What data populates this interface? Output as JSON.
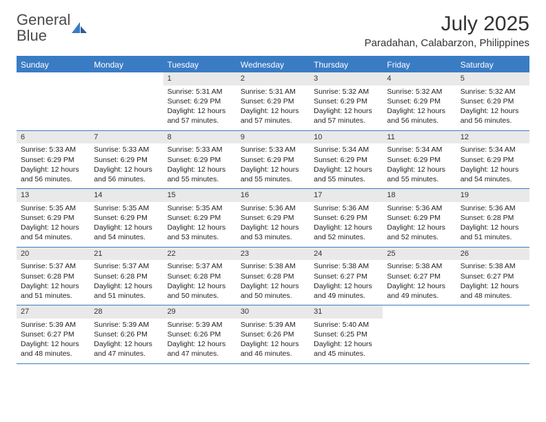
{
  "logo": {
    "text1": "General",
    "text2": "Blue"
  },
  "header": {
    "month_title": "July 2025",
    "location": "Paradahan, Calabarzon, Philippines"
  },
  "colors": {
    "accent": "#3a7cc4",
    "header_text": "#ffffff",
    "daynum_bg": "#e9e9e9",
    "body_text": "#222222",
    "background": "#ffffff"
  },
  "calendar": {
    "day_names": [
      "Sunday",
      "Monday",
      "Tuesday",
      "Wednesday",
      "Thursday",
      "Friday",
      "Saturday"
    ],
    "typography": {
      "day_header_fontsize": 12,
      "cell_fontsize": 10.5,
      "daynum_fontsize": 11
    },
    "weeks": [
      [
        {
          "blank": true
        },
        {
          "blank": true
        },
        {
          "num": "1",
          "sunrise": "Sunrise: 5:31 AM",
          "sunset": "Sunset: 6:29 PM",
          "day1": "Daylight: 12 hours",
          "day2": "and 57 minutes."
        },
        {
          "num": "2",
          "sunrise": "Sunrise: 5:31 AM",
          "sunset": "Sunset: 6:29 PM",
          "day1": "Daylight: 12 hours",
          "day2": "and 57 minutes."
        },
        {
          "num": "3",
          "sunrise": "Sunrise: 5:32 AM",
          "sunset": "Sunset: 6:29 PM",
          "day1": "Daylight: 12 hours",
          "day2": "and 57 minutes."
        },
        {
          "num": "4",
          "sunrise": "Sunrise: 5:32 AM",
          "sunset": "Sunset: 6:29 PM",
          "day1": "Daylight: 12 hours",
          "day2": "and 56 minutes."
        },
        {
          "num": "5",
          "sunrise": "Sunrise: 5:32 AM",
          "sunset": "Sunset: 6:29 PM",
          "day1": "Daylight: 12 hours",
          "day2": "and 56 minutes."
        }
      ],
      [
        {
          "num": "6",
          "sunrise": "Sunrise: 5:33 AM",
          "sunset": "Sunset: 6:29 PM",
          "day1": "Daylight: 12 hours",
          "day2": "and 56 minutes."
        },
        {
          "num": "7",
          "sunrise": "Sunrise: 5:33 AM",
          "sunset": "Sunset: 6:29 PM",
          "day1": "Daylight: 12 hours",
          "day2": "and 56 minutes."
        },
        {
          "num": "8",
          "sunrise": "Sunrise: 5:33 AM",
          "sunset": "Sunset: 6:29 PM",
          "day1": "Daylight: 12 hours",
          "day2": "and 55 minutes."
        },
        {
          "num": "9",
          "sunrise": "Sunrise: 5:33 AM",
          "sunset": "Sunset: 6:29 PM",
          "day1": "Daylight: 12 hours",
          "day2": "and 55 minutes."
        },
        {
          "num": "10",
          "sunrise": "Sunrise: 5:34 AM",
          "sunset": "Sunset: 6:29 PM",
          "day1": "Daylight: 12 hours",
          "day2": "and 55 minutes."
        },
        {
          "num": "11",
          "sunrise": "Sunrise: 5:34 AM",
          "sunset": "Sunset: 6:29 PM",
          "day1": "Daylight: 12 hours",
          "day2": "and 55 minutes."
        },
        {
          "num": "12",
          "sunrise": "Sunrise: 5:34 AM",
          "sunset": "Sunset: 6:29 PM",
          "day1": "Daylight: 12 hours",
          "day2": "and 54 minutes."
        }
      ],
      [
        {
          "num": "13",
          "sunrise": "Sunrise: 5:35 AM",
          "sunset": "Sunset: 6:29 PM",
          "day1": "Daylight: 12 hours",
          "day2": "and 54 minutes."
        },
        {
          "num": "14",
          "sunrise": "Sunrise: 5:35 AM",
          "sunset": "Sunset: 6:29 PM",
          "day1": "Daylight: 12 hours",
          "day2": "and 54 minutes."
        },
        {
          "num": "15",
          "sunrise": "Sunrise: 5:35 AM",
          "sunset": "Sunset: 6:29 PM",
          "day1": "Daylight: 12 hours",
          "day2": "and 53 minutes."
        },
        {
          "num": "16",
          "sunrise": "Sunrise: 5:36 AM",
          "sunset": "Sunset: 6:29 PM",
          "day1": "Daylight: 12 hours",
          "day2": "and 53 minutes."
        },
        {
          "num": "17",
          "sunrise": "Sunrise: 5:36 AM",
          "sunset": "Sunset: 6:29 PM",
          "day1": "Daylight: 12 hours",
          "day2": "and 52 minutes."
        },
        {
          "num": "18",
          "sunrise": "Sunrise: 5:36 AM",
          "sunset": "Sunset: 6:29 PM",
          "day1": "Daylight: 12 hours",
          "day2": "and 52 minutes."
        },
        {
          "num": "19",
          "sunrise": "Sunrise: 5:36 AM",
          "sunset": "Sunset: 6:28 PM",
          "day1": "Daylight: 12 hours",
          "day2": "and 51 minutes."
        }
      ],
      [
        {
          "num": "20",
          "sunrise": "Sunrise: 5:37 AM",
          "sunset": "Sunset: 6:28 PM",
          "day1": "Daylight: 12 hours",
          "day2": "and 51 minutes."
        },
        {
          "num": "21",
          "sunrise": "Sunrise: 5:37 AM",
          "sunset": "Sunset: 6:28 PM",
          "day1": "Daylight: 12 hours",
          "day2": "and 51 minutes."
        },
        {
          "num": "22",
          "sunrise": "Sunrise: 5:37 AM",
          "sunset": "Sunset: 6:28 PM",
          "day1": "Daylight: 12 hours",
          "day2": "and 50 minutes."
        },
        {
          "num": "23",
          "sunrise": "Sunrise: 5:38 AM",
          "sunset": "Sunset: 6:28 PM",
          "day1": "Daylight: 12 hours",
          "day2": "and 50 minutes."
        },
        {
          "num": "24",
          "sunrise": "Sunrise: 5:38 AM",
          "sunset": "Sunset: 6:27 PM",
          "day1": "Daylight: 12 hours",
          "day2": "and 49 minutes."
        },
        {
          "num": "25",
          "sunrise": "Sunrise: 5:38 AM",
          "sunset": "Sunset: 6:27 PM",
          "day1": "Daylight: 12 hours",
          "day2": "and 49 minutes."
        },
        {
          "num": "26",
          "sunrise": "Sunrise: 5:38 AM",
          "sunset": "Sunset: 6:27 PM",
          "day1": "Daylight: 12 hours",
          "day2": "and 48 minutes."
        }
      ],
      [
        {
          "num": "27",
          "sunrise": "Sunrise: 5:39 AM",
          "sunset": "Sunset: 6:27 PM",
          "day1": "Daylight: 12 hours",
          "day2": "and 48 minutes."
        },
        {
          "num": "28",
          "sunrise": "Sunrise: 5:39 AM",
          "sunset": "Sunset: 6:26 PM",
          "day1": "Daylight: 12 hours",
          "day2": "and 47 minutes."
        },
        {
          "num": "29",
          "sunrise": "Sunrise: 5:39 AM",
          "sunset": "Sunset: 6:26 PM",
          "day1": "Daylight: 12 hours",
          "day2": "and 47 minutes."
        },
        {
          "num": "30",
          "sunrise": "Sunrise: 5:39 AM",
          "sunset": "Sunset: 6:26 PM",
          "day1": "Daylight: 12 hours",
          "day2": "and 46 minutes."
        },
        {
          "num": "31",
          "sunrise": "Sunrise: 5:40 AM",
          "sunset": "Sunset: 6:25 PM",
          "day1": "Daylight: 12 hours",
          "day2": "and 45 minutes."
        },
        {
          "blank": true
        },
        {
          "blank": true
        }
      ]
    ]
  }
}
